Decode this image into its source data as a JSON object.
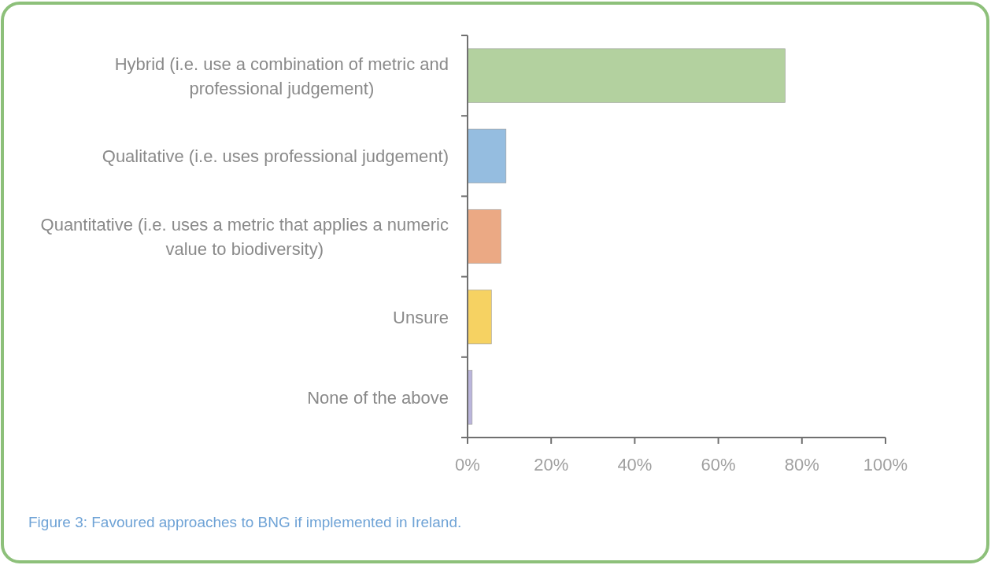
{
  "chart_data": {
    "type": "bar",
    "orientation": "horizontal",
    "categories": [
      "Hybrid (i.e. use a combination of metric and professional judgement)",
      "Qualitative (i.e. uses professional judgement)",
      "Quantitative (i.e. uses a metric that applies a numeric value to biodiversity)",
      "Unsure",
      "None of the above"
    ],
    "values": [
      76,
      9.2,
      8,
      5.7,
      1.1
    ],
    "colors": [
      "#b3d19f",
      "#95bde0",
      "#eba984",
      "#f6d262",
      "#bab5db"
    ],
    "xlim": [
      0,
      100
    ],
    "xticks": [
      {
        "value": 0,
        "label": "0%"
      },
      {
        "value": 20,
        "label": "20%"
      },
      {
        "value": 40,
        "label": "40%"
      },
      {
        "value": 60,
        "label": "60%"
      },
      {
        "value": 80,
        "label": "80%"
      },
      {
        "value": 100,
        "label": "100%"
      }
    ],
    "annotations": [
      "Figure 3: Favoured approaches to BNG if implemented in Ireland."
    ]
  }
}
